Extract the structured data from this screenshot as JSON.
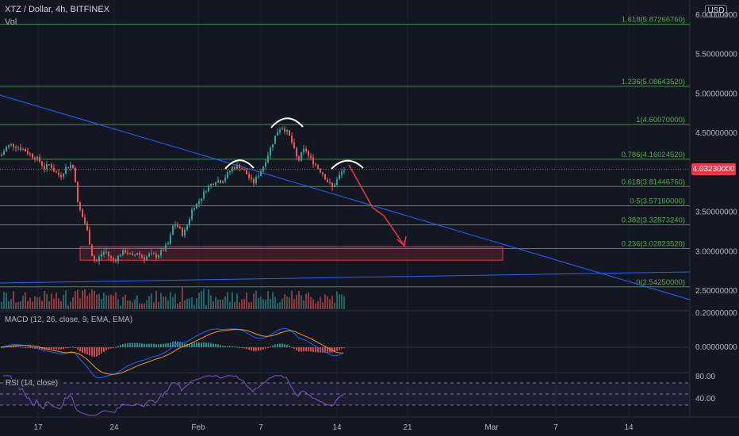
{
  "header": {
    "title": "XTZ / Dollar, 4h, BITFINEX",
    "vol_label": "Vol",
    "currency": "USD"
  },
  "price_tag": "4.03230000",
  "colors": {
    "background": "#131722",
    "up": "#26a69a",
    "down": "#ef5350",
    "fib": "#4caf50",
    "trendline": "#2962ff",
    "arrow": "#f23645",
    "box": "#f23645"
  },
  "chart_data": {
    "type": "candlestick",
    "symbol": "XTZ / Dollar",
    "interval": "4h",
    "exchange": "BITFINEX",
    "y_axis": {
      "ticks": [
        "6.00000000",
        "5.50000000",
        "5.00000000",
        "4.50000000",
        "3.50000000",
        "3.00000000",
        "2.50000000"
      ],
      "range": [
        2.2,
        6.1
      ],
      "last_price": 4.0323
    },
    "x_axis": {
      "ticks": [
        "17",
        "24",
        "Feb",
        "7",
        "14",
        "21",
        "Mar",
        "7",
        "14"
      ]
    },
    "fib_levels": [
      {
        "ratio": "1.618",
        "value": 5.8726676,
        "label": "1.618(5.87266760)"
      },
      {
        "ratio": "1.236",
        "value": 5.0864352,
        "label": "1.236(5.08643520)"
      },
      {
        "ratio": "1",
        "value": 4.6007,
        "label": "1(4.60070000)"
      },
      {
        "ratio": "0.786",
        "value": 4.1602452,
        "label": "0.786(4.16024520)"
      },
      {
        "ratio": "0.618",
        "value": 3.8144676,
        "label": "0.618(3.81446760)"
      },
      {
        "ratio": "0.5",
        "value": 3.5716,
        "label": "0.5(3.57160000)"
      },
      {
        "ratio": "0.382",
        "value": 3.3287324,
        "label": "0.382(3.32873240)"
      },
      {
        "ratio": "0.236",
        "value": 3.0282352,
        "label": "0.236(3.02823520)"
      },
      {
        "ratio": "0",
        "value": 2.5425,
        "label": "0(2.54250000)"
      }
    ],
    "price_path": [
      [
        0,
        4.2
      ],
      [
        6,
        4.3
      ],
      [
        12,
        4.35
      ],
      [
        20,
        4.32
      ],
      [
        30,
        4.28
      ],
      [
        40,
        4.2
      ],
      [
        48,
        4.15
      ],
      [
        55,
        4.05
      ],
      [
        62,
        4.1
      ],
      [
        68,
        4.0
      ],
      [
        75,
        3.95
      ],
      [
        82,
        4.05
      ],
      [
        90,
        4.1
      ],
      [
        94,
        3.9
      ],
      [
        97,
        3.6
      ],
      [
        102,
        3.45
      ],
      [
        108,
        3.3
      ],
      [
        112,
        3.1
      ],
      [
        116,
        2.9
      ],
      [
        120,
        2.85
      ],
      [
        126,
        2.95
      ],
      [
        132,
        3.0
      ],
      [
        138,
        2.9
      ],
      [
        144,
        2.88
      ],
      [
        150,
        2.95
      ],
      [
        158,
        3.0
      ],
      [
        166,
        2.92
      ],
      [
        172,
        2.98
      ],
      [
        180,
        2.9
      ],
      [
        188,
        2.95
      ],
      [
        196,
        2.93
      ],
      [
        204,
        3.0
      ],
      [
        212,
        3.1
      ],
      [
        218,
        3.35
      ],
      [
        224,
        3.3
      ],
      [
        230,
        3.2
      ],
      [
        236,
        3.35
      ],
      [
        242,
        3.55
      ],
      [
        248,
        3.6
      ],
      [
        254,
        3.7
      ],
      [
        260,
        3.8
      ],
      [
        266,
        3.85
      ],
      [
        272,
        3.9
      ],
      [
        278,
        3.88
      ],
      [
        284,
        3.95
      ],
      [
        292,
        4.05
      ],
      [
        300,
        4.08
      ],
      [
        306,
        4.02
      ],
      [
        312,
        3.95
      ],
      [
        318,
        3.85
      ],
      [
        324,
        3.95
      ],
      [
        330,
        4.05
      ],
      [
        336,
        4.2
      ],
      [
        342,
        4.35
      ],
      [
        348,
        4.5
      ],
      [
        354,
        4.58
      ],
      [
        360,
        4.52
      ],
      [
        364,
        4.45
      ],
      [
        368,
        4.35
      ],
      [
        372,
        4.2
      ],
      [
        376,
        4.15
      ],
      [
        380,
        4.25
      ],
      [
        384,
        4.3
      ],
      [
        388,
        4.2
      ],
      [
        392,
        4.15
      ],
      [
        396,
        4.1
      ],
      [
        400,
        4.05
      ],
      [
        406,
        3.98
      ],
      [
        412,
        3.88
      ],
      [
        418,
        3.8
      ],
      [
        424,
        3.9
      ],
      [
        430,
        4.0
      ],
      [
        434,
        4.03
      ]
    ],
    "support_zone": {
      "low": 2.88,
      "high": 3.05
    },
    "macd": {
      "label": "MACD (12, 26, close, 9, EMA, EMA)",
      "y_ticks": [
        "0.20000000",
        "0.00000000"
      ]
    },
    "rsi": {
      "label": "RSI (14, close)",
      "y_ticks": [
        "80.00",
        "40.00"
      ]
    }
  }
}
